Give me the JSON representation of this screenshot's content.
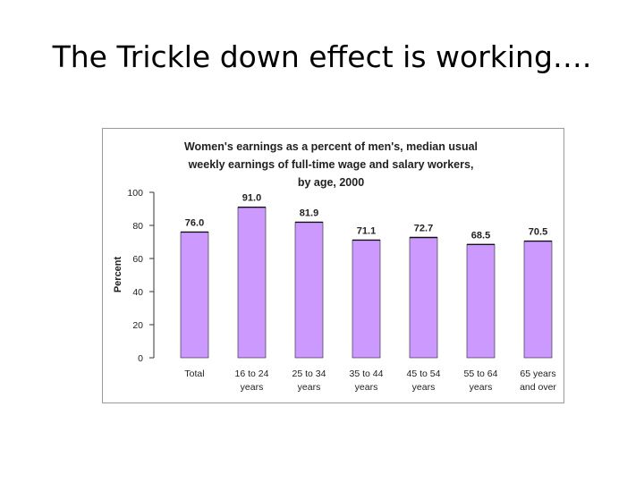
{
  "slide": {
    "title": "The Trickle down effect is working…."
  },
  "chart_data": {
    "type": "bar",
    "title_lines": [
      "Women's earnings as a percent of men's, median usual",
      "weekly earnings of full-time wage and salary workers,",
      "by age,  2000"
    ],
    "ylabel": "Percent",
    "xlabel": "",
    "ylim": [
      0,
      100
    ],
    "yticks": [
      "0",
      "20",
      "40",
      "60",
      "80",
      "100"
    ],
    "categories": [
      [
        "Total"
      ],
      [
        "16 to 24",
        "years"
      ],
      [
        "25 to 34",
        "years"
      ],
      [
        "35 to 44",
        "years"
      ],
      [
        "45 to 54",
        "years"
      ],
      [
        "55 to 64",
        "years"
      ],
      [
        "65 years",
        "and over"
      ]
    ],
    "values": [
      76.0,
      91.0,
      81.9,
      71.1,
      72.7,
      68.5,
      70.5
    ],
    "value_labels": [
      "76.0",
      "91.0",
      "81.9",
      "71.1",
      "72.7",
      "68.5",
      "70.5"
    ],
    "bar_color": "#cc99ff",
    "grid": false,
    "legend": "none"
  }
}
